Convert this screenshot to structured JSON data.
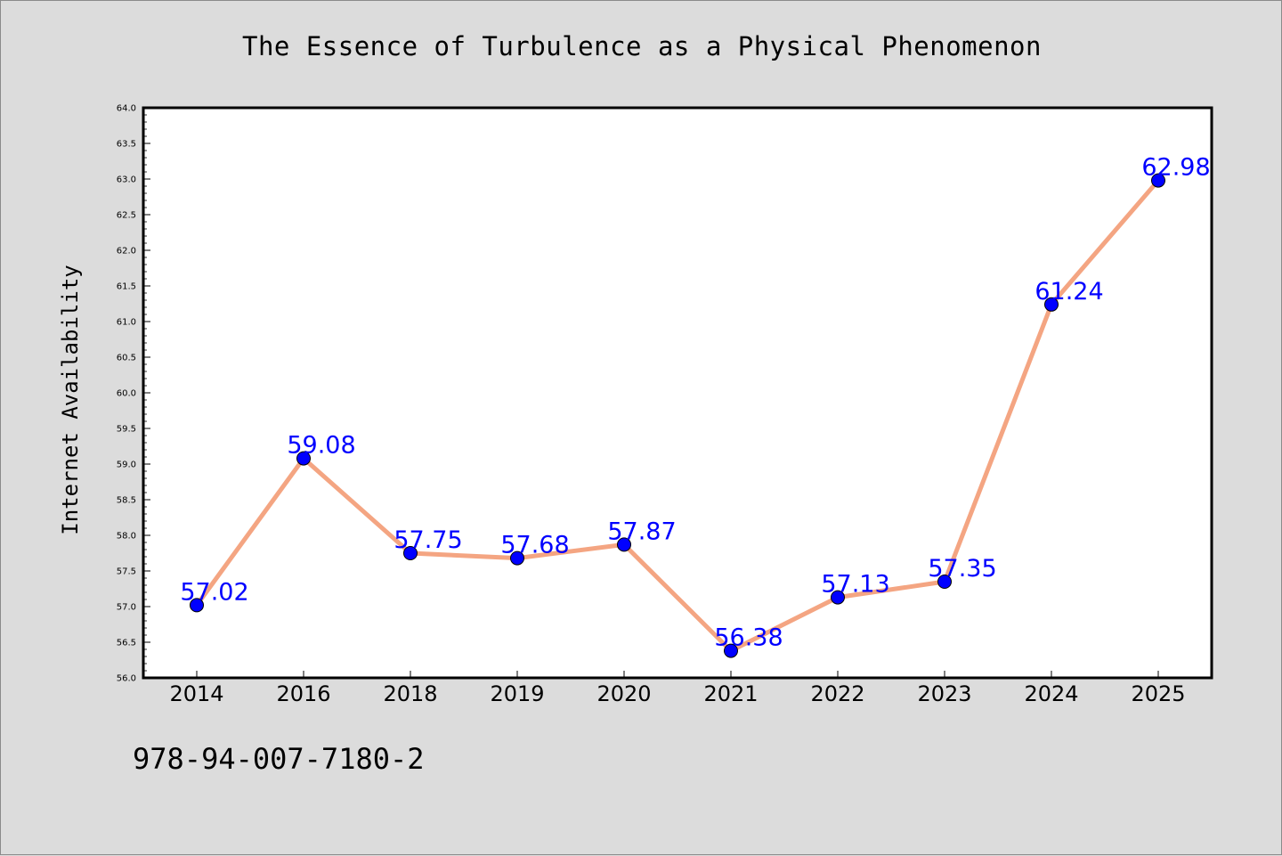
{
  "chart_data": {
    "type": "line",
    "title": "The Essence of Turbulence as a Physical Phenomenon",
    "xlabel": "",
    "ylabel": "Internet Availability",
    "categories": [
      "2014",
      "2016",
      "2018",
      "2019",
      "2020",
      "2021",
      "2022",
      "2023",
      "2024",
      "2025"
    ],
    "series": [
      {
        "values": [
          57.02,
          59.08,
          57.75,
          57.68,
          57.87,
          56.38,
          57.13,
          57.35,
          61.24,
          62.98
        ],
        "data_labels": [
          "57.02",
          "59.08",
          "57.75",
          "57.68",
          "57.87",
          "56.38",
          "57.13",
          "57.35",
          "61.24",
          "62.98"
        ],
        "line_color": "#f4a582",
        "marker_color": "#0000ff",
        "label_color": "#0000ff"
      }
    ],
    "ylim": [
      56.0,
      64.0
    ],
    "yticks": [
      "56.0",
      "56.5",
      "57.0",
      "57.5",
      "58.0",
      "58.5",
      "59.0",
      "59.5",
      "60.0",
      "60.5",
      "61.0",
      "61.5",
      "62.0",
      "62.5",
      "63.0",
      "63.5",
      "64.0"
    ],
    "grid": false,
    "legend": "none"
  },
  "footer_text": "978-94-007-7180-2",
  "colors": {
    "background": "#dcdcdc",
    "plot_area": "#ffffff"
  }
}
